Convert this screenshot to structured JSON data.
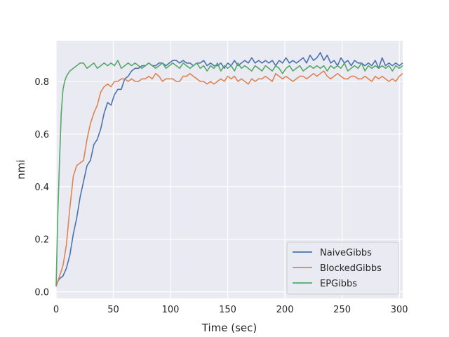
{
  "chart_data": {
    "type": "line",
    "title": "",
    "xlabel": "Time (sec)",
    "ylabel": "nmi",
    "xlim": [
      0,
      303
    ],
    "ylim": [
      -0.025,
      0.955
    ],
    "x_ticks": [
      0,
      50,
      100,
      150,
      200,
      250,
      300
    ],
    "y_ticks": [
      0.0,
      0.2,
      0.4,
      0.6,
      0.8
    ],
    "x_tick_labels": [
      "0",
      "50",
      "100",
      "150",
      "200",
      "250",
      "300"
    ],
    "y_tick_labels": [
      "0.0",
      "0.2",
      "0.4",
      "0.6",
      "0.8"
    ],
    "grid": true,
    "legend_position": "lower-right",
    "series": [
      {
        "name": "NaiveGibbs",
        "color": "#4c72b0",
        "x": [
          0,
          3,
          6,
          9,
          12,
          15,
          18,
          21,
          24,
          27,
          30,
          33,
          36,
          39,
          42,
          45,
          48,
          51,
          54,
          57,
          60,
          63,
          66,
          69,
          72,
          75,
          78,
          81,
          84,
          87,
          90,
          93,
          96,
          99,
          102,
          105,
          108,
          111,
          114,
          117,
          120,
          123,
          126,
          129,
          132,
          135,
          138,
          141,
          144,
          147,
          150,
          153,
          156,
          159,
          162,
          165,
          168,
          171,
          174,
          177,
          180,
          183,
          186,
          189,
          192,
          195,
          198,
          201,
          204,
          207,
          210,
          213,
          216,
          219,
          222,
          225,
          228,
          231,
          234,
          237,
          240,
          243,
          246,
          249,
          252,
          255,
          258,
          261,
          264,
          267,
          270,
          273,
          276,
          279,
          282,
          285,
          288,
          291,
          294,
          297,
          300,
          303
        ],
        "y": [
          0.03,
          0.05,
          0.06,
          0.09,
          0.14,
          0.22,
          0.28,
          0.36,
          0.42,
          0.48,
          0.5,
          0.56,
          0.58,
          0.62,
          0.68,
          0.72,
          0.71,
          0.75,
          0.77,
          0.77,
          0.81,
          0.82,
          0.84,
          0.85,
          0.85,
          0.86,
          0.86,
          0.87,
          0.86,
          0.86,
          0.87,
          0.87,
          0.86,
          0.87,
          0.88,
          0.88,
          0.87,
          0.88,
          0.87,
          0.87,
          0.86,
          0.87,
          0.87,
          0.88,
          0.86,
          0.87,
          0.86,
          0.86,
          0.87,
          0.85,
          0.87,
          0.86,
          0.88,
          0.86,
          0.87,
          0.88,
          0.87,
          0.89,
          0.87,
          0.88,
          0.87,
          0.88,
          0.87,
          0.88,
          0.86,
          0.88,
          0.87,
          0.89,
          0.87,
          0.88,
          0.87,
          0.88,
          0.89,
          0.87,
          0.9,
          0.88,
          0.89,
          0.91,
          0.88,
          0.9,
          0.87,
          0.88,
          0.86,
          0.89,
          0.87,
          0.88,
          0.86,
          0.88,
          0.87,
          0.87,
          0.86,
          0.87,
          0.86,
          0.88,
          0.85,
          0.89,
          0.86,
          0.87,
          0.86,
          0.87,
          0.86,
          0.87
        ]
      },
      {
        "name": "BlockedGibbs",
        "color": "#dd8452",
        "x": [
          0,
          3,
          6,
          9,
          12,
          15,
          18,
          21,
          24,
          27,
          30,
          33,
          36,
          39,
          42,
          45,
          48,
          51,
          54,
          57,
          60,
          63,
          66,
          69,
          72,
          75,
          78,
          81,
          84,
          87,
          90,
          93,
          96,
          99,
          102,
          105,
          108,
          111,
          114,
          117,
          120,
          123,
          126,
          129,
          132,
          135,
          138,
          141,
          144,
          147,
          150,
          153,
          156,
          159,
          162,
          165,
          168,
          171,
          174,
          177,
          180,
          183,
          186,
          189,
          192,
          195,
          198,
          201,
          204,
          207,
          210,
          213,
          216,
          219,
          222,
          225,
          228,
          231,
          234,
          237,
          240,
          243,
          246,
          249,
          252,
          255,
          258,
          261,
          264,
          267,
          270,
          273,
          276,
          279,
          282,
          285,
          288,
          291,
          294,
          297,
          300,
          303
        ],
        "y": [
          0.02,
          0.06,
          0.1,
          0.18,
          0.32,
          0.44,
          0.48,
          0.49,
          0.5,
          0.58,
          0.64,
          0.68,
          0.71,
          0.76,
          0.78,
          0.79,
          0.78,
          0.8,
          0.8,
          0.81,
          0.81,
          0.8,
          0.81,
          0.8,
          0.8,
          0.81,
          0.81,
          0.82,
          0.81,
          0.83,
          0.82,
          0.8,
          0.81,
          0.81,
          0.81,
          0.8,
          0.8,
          0.82,
          0.82,
          0.83,
          0.82,
          0.81,
          0.8,
          0.8,
          0.79,
          0.8,
          0.79,
          0.8,
          0.81,
          0.8,
          0.82,
          0.81,
          0.82,
          0.8,
          0.81,
          0.8,
          0.79,
          0.81,
          0.8,
          0.81,
          0.81,
          0.82,
          0.81,
          0.8,
          0.83,
          0.82,
          0.81,
          0.82,
          0.81,
          0.8,
          0.81,
          0.82,
          0.82,
          0.81,
          0.82,
          0.83,
          0.82,
          0.83,
          0.84,
          0.82,
          0.81,
          0.82,
          0.83,
          0.82,
          0.81,
          0.81,
          0.82,
          0.82,
          0.81,
          0.81,
          0.82,
          0.81,
          0.8,
          0.82,
          0.81,
          0.82,
          0.81,
          0.8,
          0.81,
          0.8,
          0.82,
          0.83
        ]
      },
      {
        "name": "EPGibbs",
        "color": "#55a868",
        "x": [
          0,
          1.5,
          3,
          4.5,
          6,
          7.5,
          9,
          10.5,
          12,
          15,
          18,
          21,
          24,
          27,
          30,
          33,
          36,
          39,
          42,
          45,
          48,
          51,
          54,
          57,
          60,
          63,
          66,
          69,
          72,
          75,
          78,
          81,
          84,
          87,
          90,
          93,
          96,
          99,
          102,
          105,
          108,
          111,
          114,
          117,
          120,
          123,
          126,
          129,
          132,
          135,
          138,
          141,
          144,
          147,
          150,
          153,
          156,
          159,
          162,
          165,
          168,
          171,
          174,
          177,
          180,
          183,
          186,
          189,
          192,
          195,
          198,
          201,
          204,
          207,
          210,
          213,
          216,
          219,
          222,
          225,
          228,
          231,
          234,
          237,
          240,
          243,
          246,
          249,
          252,
          255,
          258,
          261,
          264,
          267,
          270,
          273,
          276,
          279,
          282,
          285,
          288,
          291,
          294,
          297,
          300,
          303
        ],
        "y": [
          0.02,
          0.3,
          0.5,
          0.68,
          0.77,
          0.8,
          0.82,
          0.83,
          0.84,
          0.85,
          0.86,
          0.87,
          0.87,
          0.85,
          0.86,
          0.87,
          0.85,
          0.86,
          0.87,
          0.86,
          0.87,
          0.86,
          0.88,
          0.85,
          0.86,
          0.87,
          0.86,
          0.87,
          0.86,
          0.85,
          0.86,
          0.87,
          0.86,
          0.85,
          0.86,
          0.87,
          0.85,
          0.86,
          0.87,
          0.86,
          0.85,
          0.87,
          0.86,
          0.85,
          0.86,
          0.87,
          0.85,
          0.86,
          0.84,
          0.86,
          0.85,
          0.87,
          0.84,
          0.86,
          0.85,
          0.86,
          0.84,
          0.87,
          0.85,
          0.86,
          0.85,
          0.84,
          0.86,
          0.85,
          0.84,
          0.86,
          0.85,
          0.84,
          0.86,
          0.85,
          0.83,
          0.85,
          0.86,
          0.84,
          0.85,
          0.86,
          0.84,
          0.85,
          0.86,
          0.85,
          0.86,
          0.85,
          0.86,
          0.84,
          0.86,
          0.85,
          0.86,
          0.85,
          0.87,
          0.84,
          0.85,
          0.86,
          0.85,
          0.87,
          0.84,
          0.86,
          0.85,
          0.86,
          0.85,
          0.86,
          0.85,
          0.86,
          0.84,
          0.86,
          0.85,
          0.86
        ]
      }
    ]
  }
}
